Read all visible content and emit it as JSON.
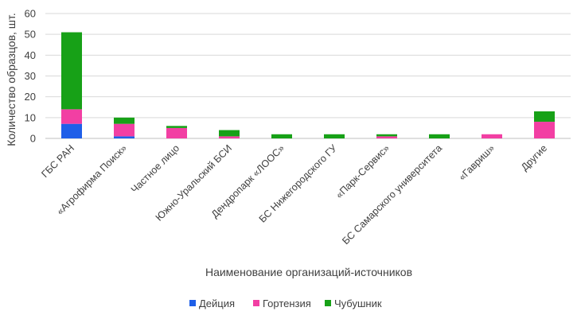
{
  "chart_data": {
    "type": "bar",
    "stacked": true,
    "categories": [
      "ГБС РАН",
      "«Агрофирма Поиск»",
      "Частное лицо",
      "Южно-Уральский БСИ",
      "Дендропарк «ЛООС»",
      "БС Нижегородского ГУ",
      "«Парк-Сервис»",
      "БС Самарского университета",
      "«Гавриш»",
      "Другие"
    ],
    "series": [
      {
        "name": "Дейция",
        "color": "#1f5fe8",
        "values": [
          7,
          1,
          0,
          0,
          0,
          0,
          0,
          0,
          0,
          0
        ]
      },
      {
        "name": "Гортензия",
        "color": "#f23fa3",
        "values": [
          7,
          6,
          5,
          1,
          0,
          0,
          1,
          0,
          2,
          8
        ]
      },
      {
        "name": "Чубушник",
        "color": "#17a117",
        "values": [
          37,
          3,
          1,
          3,
          2,
          2,
          1,
          2,
          0,
          5
        ]
      }
    ],
    "xlabel": "Наименование организаций-источников",
    "ylabel": "Количество образцов, шт.",
    "ylim": [
      0,
      60
    ],
    "yticks": [
      0,
      10,
      20,
      30,
      40,
      50,
      60
    ],
    "grid": true,
    "legend_position": "bottom"
  }
}
